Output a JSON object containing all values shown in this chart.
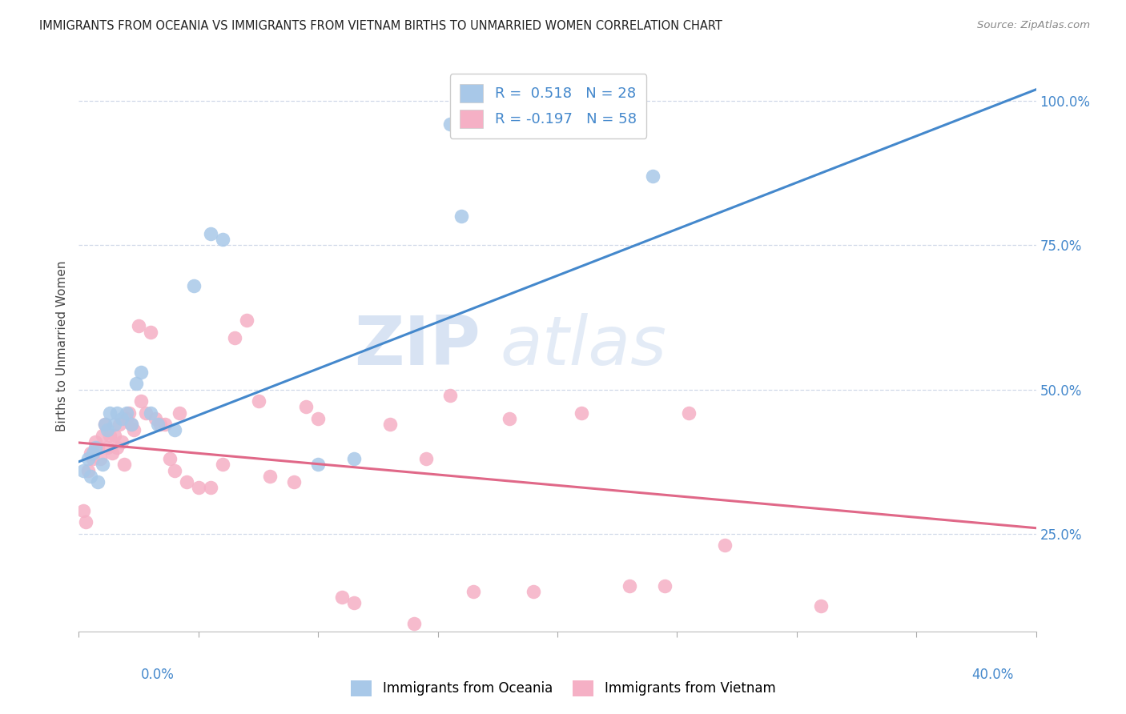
{
  "title": "IMMIGRANTS FROM OCEANIA VS IMMIGRANTS FROM VIETNAM BIRTHS TO UNMARRIED WOMEN CORRELATION CHART",
  "source": "Source: ZipAtlas.com",
  "ylabel": "Births to Unmarried Women",
  "xlim": [
    0.0,
    0.4
  ],
  "ylim": [
    0.08,
    1.07
  ],
  "blue_R": 0.518,
  "blue_N": 28,
  "pink_R": -0.197,
  "pink_N": 58,
  "blue_color": "#a8c8e8",
  "pink_color": "#f5b0c5",
  "blue_line_color": "#4488cc",
  "pink_line_color": "#e06888",
  "right_yticks": [
    0.25,
    0.5,
    0.75,
    1.0
  ],
  "right_yticklabels": [
    "25.0%",
    "50.0%",
    "75.0%",
    "100.0%"
  ],
  "watermark_zip": "ZIP",
  "watermark_atlas": "atlas",
  "blue_x": [
    0.002,
    0.004,
    0.005,
    0.006,
    0.007,
    0.008,
    0.01,
    0.011,
    0.012,
    0.013,
    0.015,
    0.016,
    0.018,
    0.02,
    0.022,
    0.024,
    0.026,
    0.03,
    0.033,
    0.04,
    0.048,
    0.055,
    0.06,
    0.1,
    0.115,
    0.155,
    0.16,
    0.24
  ],
  "blue_y": [
    0.36,
    0.38,
    0.35,
    0.39,
    0.4,
    0.34,
    0.37,
    0.44,
    0.43,
    0.46,
    0.44,
    0.46,
    0.45,
    0.46,
    0.44,
    0.51,
    0.53,
    0.46,
    0.44,
    0.43,
    0.68,
    0.77,
    0.76,
    0.37,
    0.38,
    0.96,
    0.8,
    0.87
  ],
  "pink_x": [
    0.002,
    0.003,
    0.004,
    0.005,
    0.006,
    0.007,
    0.008,
    0.009,
    0.01,
    0.011,
    0.012,
    0.013,
    0.014,
    0.015,
    0.016,
    0.017,
    0.018,
    0.019,
    0.02,
    0.021,
    0.022,
    0.023,
    0.025,
    0.026,
    0.028,
    0.03,
    0.032,
    0.034,
    0.036,
    0.038,
    0.04,
    0.042,
    0.045,
    0.05,
    0.055,
    0.06,
    0.065,
    0.07,
    0.075,
    0.08,
    0.09,
    0.095,
    0.1,
    0.11,
    0.115,
    0.13,
    0.14,
    0.145,
    0.155,
    0.165,
    0.18,
    0.19,
    0.21,
    0.23,
    0.245,
    0.255,
    0.27,
    0.31
  ],
  "pink_y": [
    0.29,
    0.27,
    0.36,
    0.39,
    0.38,
    0.41,
    0.4,
    0.38,
    0.42,
    0.44,
    0.4,
    0.42,
    0.39,
    0.42,
    0.4,
    0.44,
    0.41,
    0.37,
    0.45,
    0.46,
    0.44,
    0.43,
    0.61,
    0.48,
    0.46,
    0.6,
    0.45,
    0.44,
    0.44,
    0.38,
    0.36,
    0.46,
    0.34,
    0.33,
    0.33,
    0.37,
    0.59,
    0.62,
    0.48,
    0.35,
    0.34,
    0.47,
    0.45,
    0.14,
    0.13,
    0.44,
    0.095,
    0.38,
    0.49,
    0.15,
    0.45,
    0.15,
    0.46,
    0.16,
    0.16,
    0.46,
    0.23,
    0.125
  ],
  "blue_line_x0": 0.0,
  "blue_line_y0": 0.375,
  "blue_line_x1": 0.4,
  "blue_line_y1": 1.02,
  "pink_line_x0": 0.0,
  "pink_line_y0": 0.408,
  "pink_line_x1": 0.4,
  "pink_line_y1": 0.26
}
